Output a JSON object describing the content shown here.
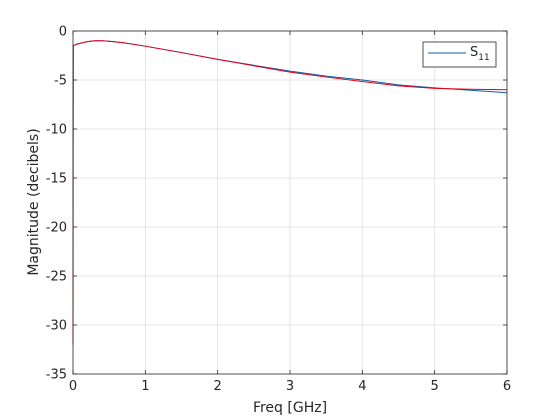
{
  "chart_data": {
    "type": "line",
    "xlabel": "Freq [GHz]",
    "ylabel": "Magnitude (decibels)",
    "xlim": [
      0,
      6
    ],
    "ylim": [
      -35,
      0
    ],
    "xticks": [
      0,
      1,
      2,
      3,
      4,
      5,
      6
    ],
    "yticks": [
      0,
      -5,
      -10,
      -15,
      -20,
      -25,
      -30,
      -35
    ],
    "grid": true,
    "legend": {
      "position": "top-right",
      "entries": [
        {
          "main": "S",
          "sub": "11",
          "color": "#0b5fa5"
        }
      ]
    },
    "series": [
      {
        "name": "S11",
        "color": "#0b5fa5",
        "x": [
          0.0,
          0.005,
          0.02,
          0.05,
          0.1,
          0.2,
          0.3,
          0.4,
          0.5,
          0.7,
          1.0,
          1.5,
          2.0,
          2.5,
          3.0,
          3.5,
          4.0,
          4.5,
          5.0,
          5.5,
          6.0
        ],
        "y": [
          -1.6,
          -1.5,
          -1.45,
          -1.35,
          -1.25,
          -1.08,
          -1.0,
          -1.0,
          -1.05,
          -1.2,
          -1.55,
          -2.2,
          -2.9,
          -3.5,
          -4.1,
          -4.6,
          -5.0,
          -5.5,
          -5.8,
          -6.05,
          -6.3
        ]
      },
      {
        "color": "#e5001a",
        "x": [
          0.0,
          0.002,
          0.005,
          0.02,
          0.05,
          0.1,
          0.2,
          0.3,
          0.4,
          0.5,
          0.7,
          1.0,
          1.5,
          2.0,
          2.5,
          3.0,
          3.5,
          4.0,
          4.5,
          5.0,
          5.5,
          6.0
        ],
        "y": [
          -32.0,
          -12.0,
          -1.5,
          -1.45,
          -1.35,
          -1.25,
          -1.08,
          -1.0,
          -1.0,
          -1.05,
          -1.2,
          -1.55,
          -2.2,
          -2.9,
          -3.55,
          -4.2,
          -4.7,
          -5.15,
          -5.6,
          -5.85,
          -5.95,
          -6.0
        ]
      }
    ]
  }
}
